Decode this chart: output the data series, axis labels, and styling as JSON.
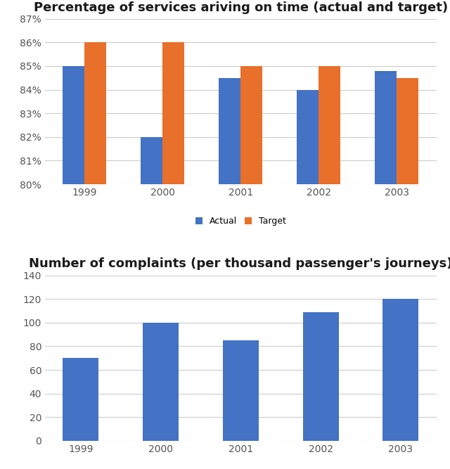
{
  "years": [
    "1999",
    "2000",
    "2001",
    "2002",
    "2003"
  ],
  "actual": [
    85,
    82,
    84.5,
    84,
    84.8
  ],
  "target": [
    86,
    86,
    85,
    85,
    84.5
  ],
  "complaints": [
    70,
    100,
    85,
    109,
    120
  ],
  "bar_color_actual": "#4472C4",
  "bar_color_target": "#E8702A",
  "bar_color_complaints": "#4472C4",
  "title1": "Percentage of services ariving on time (actual and target)",
  "title2": "Number of complaints (per thousand passenger's journeys)",
  "ylim1": [
    80,
    87
  ],
  "yticks1": [
    80,
    81,
    82,
    83,
    84,
    85,
    86,
    87
  ],
  "ylim2": [
    0,
    140
  ],
  "yticks2": [
    0,
    20,
    40,
    60,
    80,
    100,
    120,
    140
  ],
  "legend_labels": [
    "Actual",
    "Target"
  ],
  "background_color": "#ffffff",
  "grid_color": "#cccccc",
  "title_fontsize": 13,
  "axis_fontsize": 10,
  "legend_fontsize": 9,
  "bar_width": 0.28,
  "complaints_bar_width": 0.45
}
